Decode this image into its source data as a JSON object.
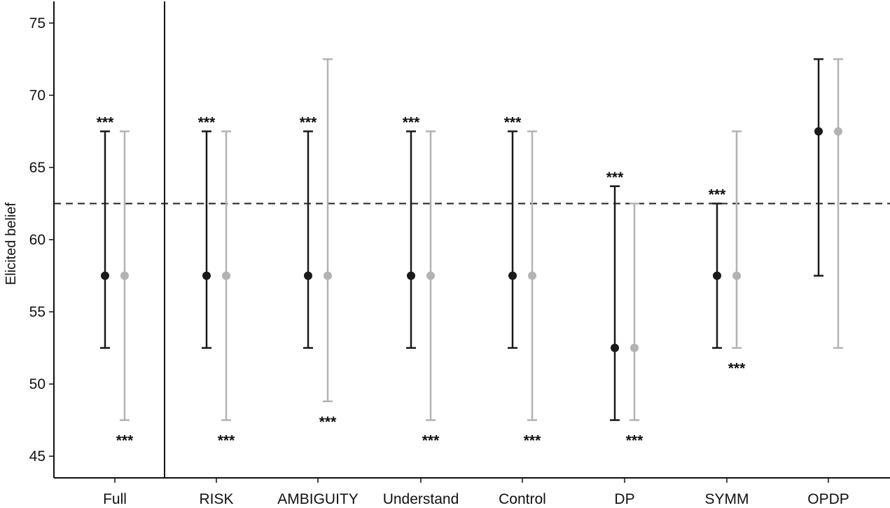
{
  "chart_data": {
    "type": "errorbar",
    "ylabel": "Elicited belief",
    "xlabel": "",
    "ylim": [
      43.5,
      76.5
    ],
    "yticks": [
      45,
      50,
      55,
      60,
      65,
      70,
      75
    ],
    "reference_line": 62.5,
    "reference_line_style": "dashed",
    "separator_after_category": "Full",
    "grid": false,
    "legend": "none",
    "colors": {
      "dark": "#1a1a1a",
      "light": "#b3b3b3",
      "axis": "#111111"
    },
    "categories": [
      "Full",
      "RISK",
      "AMBIGUITY",
      "Understand",
      "Control",
      "DP",
      "SYMM",
      "OPDP"
    ],
    "series": [
      {
        "color": "dark",
        "points": [
          {
            "category": "Full",
            "y": 57.5,
            "low": 52.5,
            "high": 67.5,
            "sig": "***",
            "sig_pos": "above"
          },
          {
            "category": "RISK",
            "y": 57.5,
            "low": 52.5,
            "high": 67.5,
            "sig": "***",
            "sig_pos": "above"
          },
          {
            "category": "AMBIGUITY",
            "y": 57.5,
            "low": 52.5,
            "high": 67.5,
            "sig": "***",
            "sig_pos": "above"
          },
          {
            "category": "Understand",
            "y": 57.5,
            "low": 52.5,
            "high": 67.5,
            "sig": "***",
            "sig_pos": "above"
          },
          {
            "category": "Control",
            "y": 57.5,
            "low": 52.5,
            "high": 67.5,
            "sig": "***",
            "sig_pos": "above"
          },
          {
            "category": "DP",
            "y": 52.5,
            "low": 47.5,
            "high": 63.7,
            "sig": "***",
            "sig_pos": "above"
          },
          {
            "category": "SYMM",
            "y": 57.5,
            "low": 52.5,
            "high": 62.5,
            "sig": "***",
            "sig_pos": "above"
          },
          {
            "category": "OPDP",
            "y": 67.5,
            "low": 57.5,
            "high": 72.5,
            "sig": "",
            "sig_pos": "above"
          }
        ]
      },
      {
        "color": "light",
        "points": [
          {
            "category": "Full",
            "y": 57.5,
            "low": 47.5,
            "high": 67.5,
            "sig": "***",
            "sig_pos": "below"
          },
          {
            "category": "RISK",
            "y": 57.5,
            "low": 47.5,
            "high": 67.5,
            "sig": "***",
            "sig_pos": "below"
          },
          {
            "category": "AMBIGUITY",
            "y": 57.5,
            "low": 48.8,
            "high": 72.5,
            "sig": "***",
            "sig_pos": "below"
          },
          {
            "category": "Understand",
            "y": 57.5,
            "low": 47.5,
            "high": 67.5,
            "sig": "***",
            "sig_pos": "below"
          },
          {
            "category": "Control",
            "y": 57.5,
            "low": 47.5,
            "high": 67.5,
            "sig": "***",
            "sig_pos": "below"
          },
          {
            "category": "DP",
            "y": 52.5,
            "low": 47.5,
            "high": 62.5,
            "sig": "***",
            "sig_pos": "below"
          },
          {
            "category": "SYMM",
            "y": 57.5,
            "low": 52.5,
            "high": 67.5,
            "sig": "***",
            "sig_pos": "below"
          },
          {
            "category": "OPDP",
            "y": 67.5,
            "low": 52.5,
            "high": 72.5,
            "sig": "",
            "sig_pos": "below"
          }
        ]
      }
    ]
  }
}
